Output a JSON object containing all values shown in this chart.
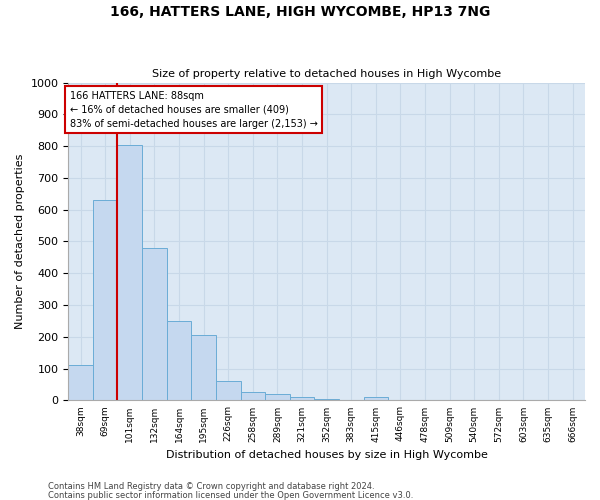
{
  "title": "166, HATTERS LANE, HIGH WYCOMBE, HP13 7NG",
  "subtitle": "Size of property relative to detached houses in High Wycombe",
  "xlabel": "Distribution of detached houses by size in High Wycombe",
  "ylabel": "Number of detached properties",
  "footnote1": "Contains HM Land Registry data © Crown copyright and database right 2024.",
  "footnote2": "Contains public sector information licensed under the Open Government Licence v3.0.",
  "bin_labels": [
    "38sqm",
    "69sqm",
    "101sqm",
    "132sqm",
    "164sqm",
    "195sqm",
    "226sqm",
    "258sqm",
    "289sqm",
    "321sqm",
    "352sqm",
    "383sqm",
    "415sqm",
    "446sqm",
    "478sqm",
    "509sqm",
    "540sqm",
    "572sqm",
    "603sqm",
    "635sqm",
    "666sqm"
  ],
  "bar_values": [
    110,
    630,
    805,
    480,
    250,
    205,
    60,
    28,
    20,
    12,
    5,
    0,
    12,
    0,
    0,
    0,
    0,
    0,
    0,
    0,
    0
  ],
  "bar_color": "#c5d8ef",
  "bar_edge_color": "#6aacd6",
  "red_line_color": "#cc0000",
  "red_line_bar_index": 1.5,
  "annotation_title": "166 HATTERS LANE: 88sqm",
  "annotation_line1": "← 16% of detached houses are smaller (409)",
  "annotation_line2": "83% of semi-detached houses are larger (2,153) →",
  "annotation_box_color": "#ffffff",
  "annotation_box_edge": "#cc0000",
  "ylim": [
    0,
    1000
  ],
  "ytick_interval": 100,
  "grid_color": "#c8d8e8",
  "background_color": "#dce8f4",
  "fig_width": 6.0,
  "fig_height": 5.0,
  "fig_dpi": 100
}
